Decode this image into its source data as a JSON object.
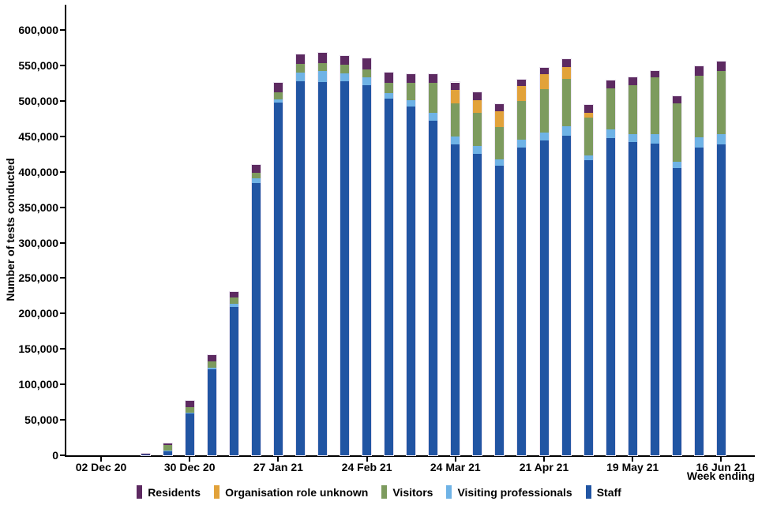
{
  "chart_data": {
    "type": "bar",
    "stacked": true,
    "title": "",
    "ylabel": "Number of tests conducted",
    "xlabel": "Week ending",
    "ylim": [
      0,
      600000
    ],
    "ytick_interval": 50000,
    "grid": false,
    "legend_position": "bottom",
    "categories": [
      "02 Dec 20",
      "09 Dec 20",
      "16 Dec 20",
      "23 Dec 20",
      "30 Dec 20",
      "06 Jan 21",
      "13 Jan 21",
      "20 Jan 21",
      "27 Jan 21",
      "03 Feb 21",
      "10 Feb 21",
      "17 Feb 21",
      "24 Feb 21",
      "03 Mar 21",
      "10 Mar 21",
      "17 Mar 21",
      "24 Mar 21",
      "31 Mar 21",
      "07 Apr 21",
      "14 Apr 21",
      "21 Apr 21",
      "28 Apr 21",
      "05 May 21",
      "12 May 21",
      "19 May 21",
      "26 May 21",
      "02 Jun 21",
      "09 Jun 21",
      "16 Jun 21"
    ],
    "xticks": [
      {
        "index": 0,
        "label": "02 Dec 20"
      },
      {
        "index": 4,
        "label": "30 Dec 20"
      },
      {
        "index": 8,
        "label": "27 Jan 21"
      },
      {
        "index": 12,
        "label": "24 Feb 21"
      },
      {
        "index": 16,
        "label": "24 Mar 21"
      },
      {
        "index": 20,
        "label": "21 Apr 21"
      },
      {
        "index": 24,
        "label": "19 May 21"
      },
      {
        "index": 28,
        "label": "16 Jun 21"
      }
    ],
    "series": [
      {
        "name": "Staff",
        "color": "#2155a3",
        "values": [
          0,
          0,
          800,
          5500,
          59000,
          121000,
          209000,
          384000,
          498000,
          528000,
          526000,
          528000,
          522000,
          503000,
          492000,
          472000,
          439000,
          425000,
          409000,
          434000,
          444000,
          451000,
          416000,
          448000,
          442000,
          440000,
          405000,
          434000,
          439000
        ]
      },
      {
        "name": "Visiting professionals",
        "color": "#6fb3e6",
        "values": [
          0,
          0,
          200,
          1000,
          1500,
          3000,
          4500,
          7000,
          4000,
          12000,
          16000,
          11000,
          11000,
          8000,
          9000,
          11000,
          11000,
          11000,
          8000,
          11000,
          11000,
          13000,
          7000,
          12000,
          11000,
          13000,
          9000,
          15000,
          14000
        ]
      },
      {
        "name": "Visitors",
        "color": "#7d9b5e",
        "values": [
          0,
          0,
          600,
          8500,
          7000,
          9000,
          9000,
          8000,
          10000,
          12000,
          11000,
          12000,
          11000,
          14000,
          24000,
          42000,
          46000,
          47000,
          46000,
          55000,
          62000,
          67000,
          54000,
          58000,
          69000,
          80000,
          83000,
          87000,
          89000
        ]
      },
      {
        "name": "Organisation role unknown",
        "color": "#e2a23a",
        "values": [
          0,
          0,
          0,
          0,
          0,
          0,
          0,
          0,
          0,
          0,
          0,
          0,
          0,
          0,
          0,
          0,
          19000,
          18000,
          22000,
          21000,
          21000,
          17000,
          6000,
          0,
          0,
          0,
          0,
          0,
          0
        ]
      },
      {
        "name": "Residents",
        "color": "#5d2a61",
        "values": [
          0,
          0,
          400,
          1500,
          9500,
          8000,
          8000,
          11000,
          13000,
          13000,
          15000,
          12000,
          16000,
          15000,
          13000,
          13000,
          11000,
          11000,
          10000,
          9000,
          9000,
          11000,
          11000,
          11000,
          11000,
          9000,
          9000,
          13000,
          13000
        ]
      }
    ],
    "legend": [
      "Residents",
      "Organisation role unknown",
      "Visitors",
      "Visiting professionals",
      "Staff"
    ]
  }
}
